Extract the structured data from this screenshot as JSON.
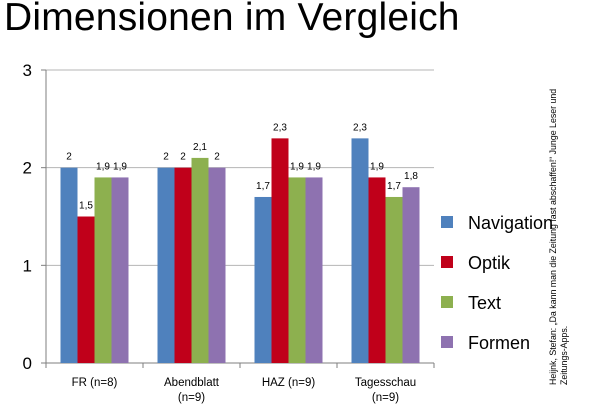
{
  "slide": {
    "title": "Dimensionen im Vergleich",
    "source_note": "Heijnk, Stefan: „Da kann man die Zeitung fast abschaffen!“ Junge Leser und Zeitungs-Apps."
  },
  "chart_data": {
    "type": "bar",
    "categories": [
      [
        "FR (n=8)"
      ],
      [
        "Abendblatt",
        "(n=9)"
      ],
      [
        "HAZ (n=9)"
      ],
      [
        "Tagesschau",
        "(n=9)"
      ]
    ],
    "series": [
      {
        "name": "Navigation",
        "color": "#4f81bd",
        "values": [
          2,
          2,
          1.7,
          2.3
        ],
        "labels": [
          "2",
          "2",
          "1,7",
          "2,3"
        ]
      },
      {
        "name": "Optik",
        "color": "#c0001a",
        "values": [
          1.5,
          2,
          2.3,
          1.9
        ],
        "labels": [
          "1,5",
          "2",
          "2,3",
          "1,9"
        ]
      },
      {
        "name": "Text",
        "color": "#8db04f",
        "values": [
          1.9,
          2.1,
          1.9,
          1.7
        ],
        "labels": [
          "1,9",
          "2,1",
          "1,9",
          "1,7"
        ]
      },
      {
        "name": "Formen",
        "color": "#8e72b0",
        "values": [
          1.9,
          2,
          1.9,
          1.8
        ],
        "labels": [
          "1,9",
          "2",
          "1,9",
          "1,8"
        ]
      }
    ],
    "ylim": [
      0,
      3
    ],
    "yticks": [
      "0",
      "1",
      "2",
      "3"
    ],
    "grid": true,
    "legend_position": "right"
  }
}
